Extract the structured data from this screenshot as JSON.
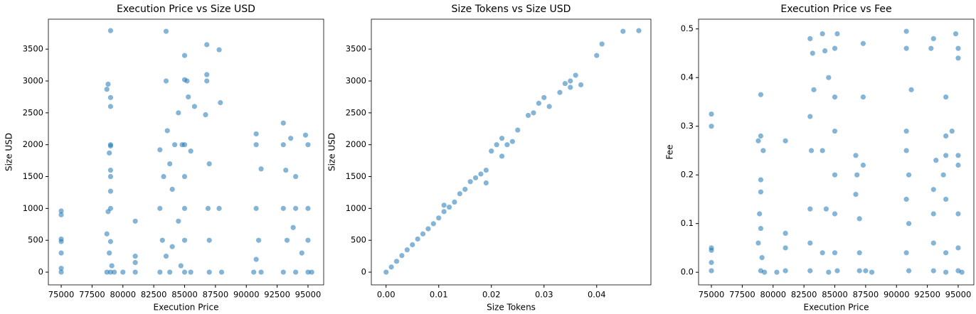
{
  "chart_data": [
    {
      "type": "scatter",
      "title": "Execution Price vs Size USD",
      "xlabel": "Execution Price",
      "ylabel": "Size USD",
      "color": "#1f77b4",
      "x": [
        75000,
        75000,
        75000,
        75000,
        75000,
        75000,
        75000,
        78700,
        78800,
        79000,
        79000,
        79000,
        79000,
        79000,
        79000,
        78900,
        79000,
        79000,
        78800,
        79000,
        78700,
        79000,
        78900,
        79100,
        79000,
        78700,
        79300,
        80000,
        81000,
        81000,
        81000,
        81000,
        83000,
        83300,
        83500,
        83500,
        83600,
        83800,
        83000,
        83200,
        83500,
        83000,
        83800,
        84000,
        84200,
        84500,
        84800,
        85000,
        85200,
        85000,
        85300,
        85000,
        85000,
        85000,
        85000,
        85000,
        85500,
        85800,
        84500,
        84000,
        84700,
        85500,
        86800,
        86800,
        86800,
        86700,
        87000,
        86900,
        87000,
        87000,
        87800,
        87900,
        87800,
        88000,
        90800,
        90800,
        91200,
        90800,
        91000,
        90800,
        91200,
        90600,
        93000,
        93000,
        93200,
        93000,
        93300,
        93000,
        93600,
        94000,
        94000,
        94000,
        94800,
        95000,
        95000,
        95000,
        95000,
        95300,
        94500,
        93800
      ],
      "y": [
        0,
        60,
        300,
        480,
        520,
        900,
        960,
        2870,
        2950,
        3790,
        2740,
        2600,
        2000,
        1980,
        1600,
        1870,
        1500,
        1270,
        950,
        1000,
        600,
        480,
        300,
        100,
        0,
        0,
        0,
        0,
        800,
        250,
        150,
        0,
        1920,
        1500,
        3780,
        3000,
        2220,
        1700,
        1000,
        500,
        250,
        0,
        0,
        1300,
        2000,
        2500,
        2000,
        3400,
        3000,
        3020,
        2750,
        2000,
        1500,
        1000,
        500,
        0,
        1900,
        2600,
        800,
        400,
        100,
        0,
        3570,
        3100,
        3000,
        2470,
        1700,
        1000,
        500,
        0,
        3490,
        2660,
        1000,
        0,
        2170,
        2000,
        1620,
        1000,
        500,
        200,
        0,
        0,
        2340,
        2000,
        1600,
        1000,
        500,
        0,
        2100,
        1500,
        1000,
        0,
        2150,
        2000,
        1000,
        500,
        0,
        0,
        300,
        700
      ],
      "xlim": [
        73960,
        96270
      ],
      "ylim": [
        -200,
        3970
      ],
      "xticks": [
        75000,
        77500,
        80000,
        82500,
        85000,
        87500,
        90000,
        92500,
        95000
      ],
      "yticks": [
        0,
        500,
        1000,
        1500,
        2000,
        2500,
        3000,
        3500
      ]
    },
    {
      "type": "scatter",
      "title": "Size Tokens vs Size USD",
      "xlabel": "Size Tokens",
      "ylabel": "Size USD",
      "color": "#1f77b4",
      "x": [
        0,
        0.001,
        0.002,
        0.003,
        0.004,
        0.005,
        0.006,
        0.007,
        0.008,
        0.009,
        0.01,
        0.011,
        0.011,
        0.012,
        0.013,
        0.014,
        0.015,
        0.016,
        0.017,
        0.018,
        0.019,
        0.019,
        0.02,
        0.021,
        0.022,
        0.022,
        0.023,
        0.024,
        0.025,
        0.027,
        0.028,
        0.029,
        0.03,
        0.031,
        0.033,
        0.034,
        0.035,
        0.035,
        0.036,
        0.037,
        0.04,
        0.041,
        0.045,
        0.048
      ],
      "y": [
        0,
        80,
        170,
        260,
        350,
        430,
        520,
        600,
        680,
        760,
        850,
        950,
        1050,
        1020,
        1100,
        1230,
        1300,
        1420,
        1480,
        1540,
        1600,
        1400,
        1900,
        2000,
        2100,
        1820,
        2000,
        2050,
        2230,
        2460,
        2500,
        2650,
        2740,
        2600,
        2820,
        2960,
        3000,
        2900,
        3090,
        2940,
        3400,
        3580,
        3780,
        3790
      ],
      "xlim": [
        -0.0028,
        0.0503
      ],
      "ylim": [
        -200,
        3970
      ],
      "xticks": [
        {
          "value": 0,
          "label": "0.00"
        },
        {
          "value": 0.01,
          "label": "0.01"
        },
        {
          "value": 0.02,
          "label": "0.02"
        },
        {
          "value": 0.03,
          "label": "0.03"
        },
        {
          "value": 0.04,
          "label": "0.04"
        }
      ],
      "yticks": [
        0,
        500,
        1000,
        1500,
        2000,
        2500,
        3000,
        3500
      ]
    },
    {
      "type": "scatter",
      "title": "Execution Price vs Fee",
      "xlabel": "Execution Price",
      "ylabel": "Fee",
      "color": "#1f77b4",
      "x": [
        75000,
        75000,
        75000,
        75000,
        75000,
        75000,
        78800,
        79000,
        79000,
        79200,
        79000,
        79000,
        78900,
        79000,
        78800,
        79100,
        79000,
        79300,
        80300,
        81000,
        81000,
        81000,
        81000,
        83000,
        83200,
        83300,
        83000,
        83100,
        83000,
        83000,
        83000,
        84000,
        84200,
        84500,
        84000,
        84300,
        84000,
        84500,
        85000,
        85200,
        85000,
        85000,
        85000,
        85000,
        85000,
        85200,
        86700,
        86800,
        86700,
        87000,
        87000,
        87000,
        87300,
        87300,
        87300,
        87500,
        88000,
        90800,
        90800,
        91200,
        90800,
        90800,
        91000,
        90800,
        91000,
        90800,
        91000,
        92800,
        93000,
        93200,
        93000,
        93000,
        93000,
        93000,
        94000,
        94000,
        94000,
        94000,
        94000,
        94000,
        94800,
        95000,
        95000,
        95000,
        95000,
        95000,
        95000,
        95000,
        95300,
        94500,
        93800
      ],
      "y": [
        0.003,
        0.02,
        0.045,
        0.05,
        0.3,
        0.325,
        0.27,
        0.365,
        0.28,
        0.25,
        0.19,
        0.165,
        0.12,
        0.09,
        0.06,
        0.03,
        0.003,
        0,
        0,
        0.27,
        0.08,
        0.05,
        0.003,
        0.48,
        0.45,
        0.375,
        0.32,
        0.25,
        0.13,
        0.06,
        0.003,
        0.49,
        0.455,
        0.4,
        0.25,
        0.13,
        0.04,
        0,
        0.46,
        0.49,
        0.36,
        0.29,
        0.2,
        0.12,
        0.04,
        0.003,
        0.24,
        0.2,
        0.16,
        0.11,
        0.04,
        0.003,
        0.47,
        0.36,
        0.22,
        0.003,
        0,
        0.495,
        0.46,
        0.375,
        0.29,
        0.25,
        0.2,
        0.15,
        0.1,
        0.04,
        0.003,
        0.46,
        0.48,
        0.23,
        0.17,
        0.12,
        0.06,
        0.003,
        0.36,
        0.28,
        0.24,
        0.15,
        0.04,
        0,
        0.49,
        0.46,
        0.44,
        0.24,
        0.22,
        0.12,
        0.05,
        0.003,
        0,
        0.29,
        0.2
      ],
      "xlim": [
        73960,
        96270
      ],
      "ylim": [
        -0.026,
        0.52
      ],
      "xticks": [
        75000,
        77500,
        80000,
        82500,
        85000,
        87500,
        90000,
        92500,
        95000
      ],
      "yticks": [
        {
          "value": 0,
          "label": "0.0"
        },
        0.1,
        0.2,
        0.3,
        0.4,
        0.5
      ]
    }
  ]
}
